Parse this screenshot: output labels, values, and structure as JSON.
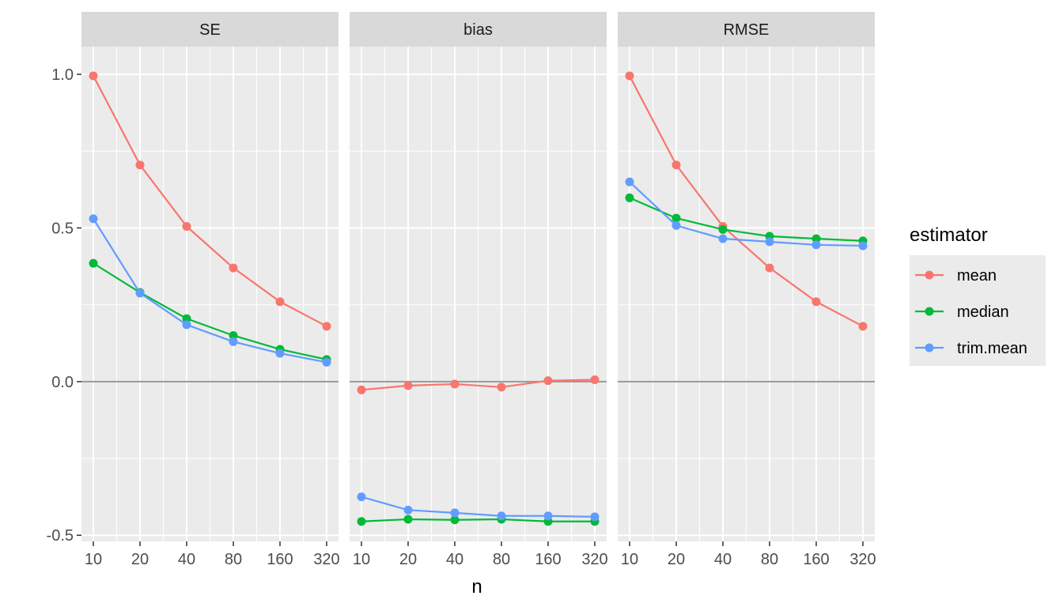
{
  "chart_data": {
    "type": "line",
    "facets": [
      "SE",
      "bias",
      "RMSE"
    ],
    "x": [
      10,
      20,
      40,
      80,
      160,
      320
    ],
    "x_ticks": [
      "10",
      "20",
      "40",
      "80",
      "160",
      "320"
    ],
    "xlabel": "n",
    "ylabel": "",
    "y_ticks": [
      "-0.5",
      "0.0",
      "0.5",
      "1.0"
    ],
    "ylim": [
      -0.52,
      1.09
    ],
    "reference_line_y": 0,
    "legend": {
      "title": "estimator",
      "position": "right",
      "entries": [
        "mean",
        "median",
        "trim.mean"
      ]
    },
    "colors": {
      "mean": "#F8766D",
      "median": "#00BA38",
      "trim.mean": "#619CFF",
      "panel": "#EBEBEB",
      "strip": "#D9D9D9",
      "grid": "#FFFFFF",
      "zero_line": "#999999"
    },
    "series": [
      {
        "name": "mean",
        "facet": "SE",
        "values": [
          0.995,
          0.705,
          0.505,
          0.37,
          0.26,
          0.18
        ]
      },
      {
        "name": "median",
        "facet": "SE",
        "values": [
          0.385,
          0.29,
          0.205,
          0.15,
          0.105,
          0.072
        ]
      },
      {
        "name": "trim.mean",
        "facet": "SE",
        "values": [
          0.53,
          0.288,
          0.185,
          0.13,
          0.092,
          0.063
        ]
      },
      {
        "name": "mean",
        "facet": "bias",
        "values": [
          -0.027,
          -0.013,
          -0.008,
          -0.018,
          0.003,
          0.006
        ]
      },
      {
        "name": "median",
        "facet": "bias",
        "values": [
          -0.455,
          -0.448,
          -0.45,
          -0.448,
          -0.455,
          -0.455
        ]
      },
      {
        "name": "trim.mean",
        "facet": "bias",
        "values": [
          -0.375,
          -0.418,
          -0.427,
          -0.437,
          -0.437,
          -0.44
        ]
      },
      {
        "name": "mean",
        "facet": "RMSE",
        "values": [
          0.995,
          0.705,
          0.505,
          0.37,
          0.26,
          0.18
        ]
      },
      {
        "name": "median",
        "facet": "RMSE",
        "values": [
          0.598,
          0.532,
          0.495,
          0.473,
          0.465,
          0.458
        ]
      },
      {
        "name": "trim.mean",
        "facet": "RMSE",
        "values": [
          0.65,
          0.508,
          0.465,
          0.455,
          0.445,
          0.442
        ]
      }
    ]
  }
}
